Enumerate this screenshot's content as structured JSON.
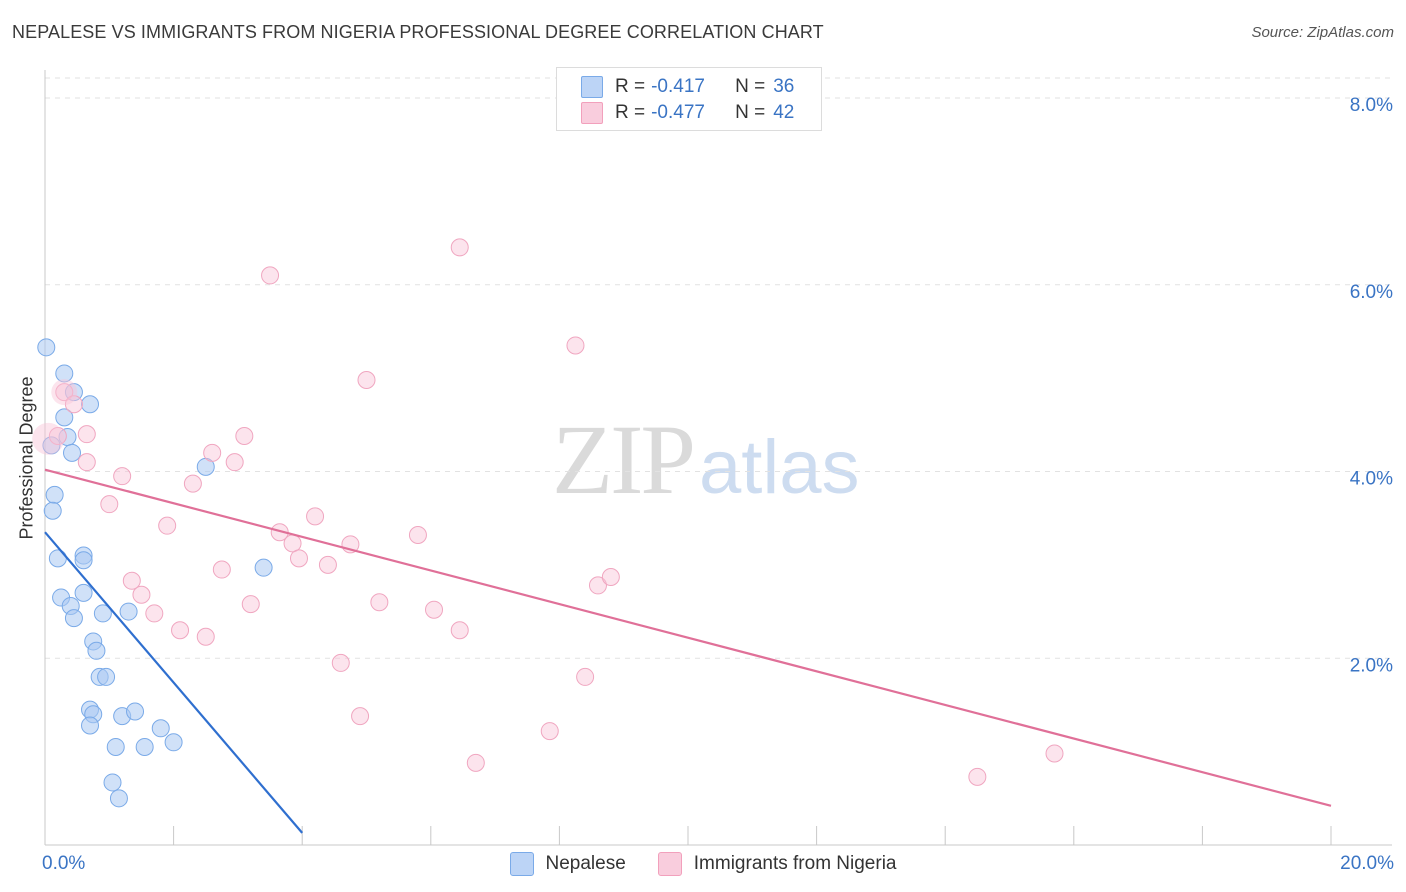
{
  "header": {
    "title": "NEPALESE VS IMMIGRANTS FROM NIGERIA PROFESSIONAL DEGREE CORRELATION CHART",
    "source": "Source: ZipAtlas.com"
  },
  "watermark": {
    "zip": "ZIP",
    "atlas": "atlas"
  },
  "legend": {
    "r_label": "R =",
    "n_label": "N =",
    "series": [
      {
        "r": "-0.417",
        "n": "36"
      },
      {
        "r": "-0.477",
        "n": "42"
      }
    ]
  },
  "chart_data": {
    "type": "scatter",
    "title": "NEPALESE VS IMMIGRANTS FROM NIGERIA PROFESSIONAL DEGREE CORRELATION CHART",
    "xlabel": "",
    "ylabel": "Professional Degree",
    "xlim": [
      0,
      20
    ],
    "ylim": [
      0,
      8.3
    ],
    "x_tick_labels": [
      "0.0%",
      "20.0%"
    ],
    "y_ticks": [
      2,
      4,
      6,
      8
    ],
    "y_tick_labels": [
      "2.0%",
      "4.0%",
      "6.0%",
      "8.0%"
    ],
    "grid": true,
    "legend_position": "top-center",
    "colors": {
      "nepalese": "#7aaae8",
      "nigeria": "#f2a0bc",
      "nepalese_line": "#2f6fcf",
      "nigeria_line": "#e07098"
    },
    "series": [
      {
        "name": "Nepalese",
        "R": -0.417,
        "N": 36,
        "trend": {
          "x": [
            0.0,
            4.0
          ],
          "y": [
            3.35,
            0.13
          ]
        },
        "points": [
          [
            0.02,
            5.33
          ],
          [
            0.3,
            5.05
          ],
          [
            0.45,
            4.85
          ],
          [
            0.7,
            4.72
          ],
          [
            0.3,
            4.58
          ],
          [
            0.35,
            4.37
          ],
          [
            0.42,
            4.2
          ],
          [
            2.5,
            4.05
          ],
          [
            0.15,
            3.75
          ],
          [
            0.12,
            3.58
          ],
          [
            0.2,
            3.07
          ],
          [
            0.6,
            3.1
          ],
          [
            0.6,
            3.05
          ],
          [
            3.4,
            2.97
          ],
          [
            0.25,
            2.65
          ],
          [
            0.6,
            2.7
          ],
          [
            0.4,
            2.56
          ],
          [
            0.45,
            2.43
          ],
          [
            0.9,
            2.48
          ],
          [
            1.3,
            2.5
          ],
          [
            0.75,
            2.18
          ],
          [
            0.8,
            2.08
          ],
          [
            0.85,
            1.8
          ],
          [
            0.95,
            1.8
          ],
          [
            0.7,
            1.45
          ],
          [
            0.75,
            1.4
          ],
          [
            0.7,
            1.28
          ],
          [
            1.2,
            1.38
          ],
          [
            1.4,
            1.43
          ],
          [
            1.8,
            1.25
          ],
          [
            1.1,
            1.05
          ],
          [
            1.55,
            1.05
          ],
          [
            2.0,
            1.1
          ],
          [
            1.05,
            0.67
          ],
          [
            1.15,
            0.5
          ],
          [
            0.1,
            4.28
          ]
        ]
      },
      {
        "name": "Immigrants from Nigeria",
        "R": -0.477,
        "N": 42,
        "trend": {
          "x": [
            0.0,
            20.0
          ],
          "y": [
            4.02,
            0.42
          ]
        },
        "points": [
          [
            0.2,
            4.38
          ],
          [
            0.3,
            4.85
          ],
          [
            0.45,
            4.72
          ],
          [
            0.65,
            4.4
          ],
          [
            0.65,
            4.1
          ],
          [
            1.2,
            3.95
          ],
          [
            1.0,
            3.65
          ],
          [
            2.6,
            4.2
          ],
          [
            3.1,
            4.38
          ],
          [
            2.95,
            4.1
          ],
          [
            2.3,
            3.87
          ],
          [
            1.9,
            3.42
          ],
          [
            3.5,
            6.1
          ],
          [
            6.45,
            6.4
          ],
          [
            8.25,
            5.35
          ],
          [
            5.0,
            4.98
          ],
          [
            4.2,
            3.52
          ],
          [
            3.65,
            3.35
          ],
          [
            3.85,
            3.23
          ],
          [
            4.75,
            3.22
          ],
          [
            5.8,
            3.32
          ],
          [
            3.95,
            3.07
          ],
          [
            4.4,
            3.0
          ],
          [
            2.75,
            2.95
          ],
          [
            1.35,
            2.83
          ],
          [
            1.5,
            2.68
          ],
          [
            3.2,
            2.58
          ],
          [
            5.2,
            2.6
          ],
          [
            8.6,
            2.78
          ],
          [
            8.8,
            2.87
          ],
          [
            1.7,
            2.48
          ],
          [
            6.05,
            2.52
          ],
          [
            2.1,
            2.3
          ],
          [
            2.5,
            2.23
          ],
          [
            6.45,
            2.3
          ],
          [
            4.6,
            1.95
          ],
          [
            8.4,
            1.8
          ],
          [
            4.9,
            1.38
          ],
          [
            7.85,
            1.22
          ],
          [
            6.7,
            0.88
          ],
          [
            14.5,
            0.73
          ],
          [
            15.7,
            0.98
          ]
        ]
      }
    ]
  },
  "bottom_legend": [
    "Nepalese",
    "Immigrants from Nigeria"
  ]
}
